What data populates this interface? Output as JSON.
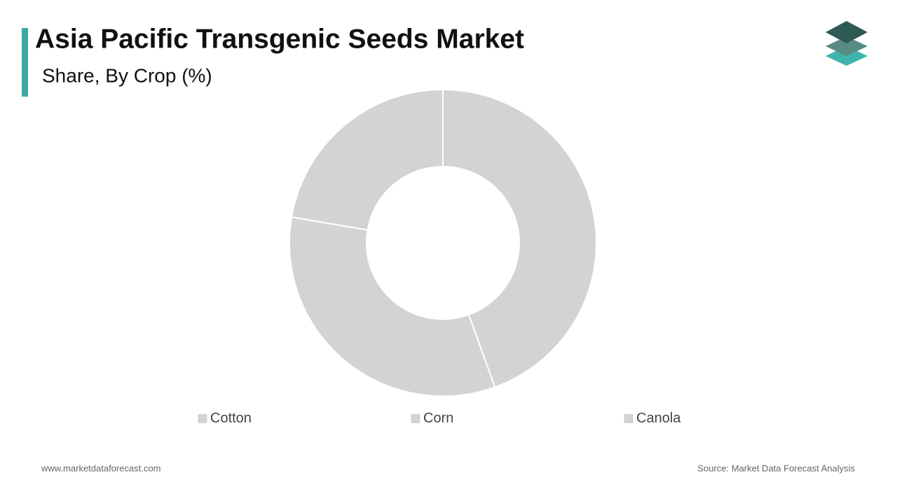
{
  "chart_data": {
    "type": "donut",
    "title": "Asia Pacific Transgenic Seeds Market",
    "subtitle": "Share, By Crop (%)",
    "categories": [
      "Cotton",
      "Corn",
      "Canola"
    ],
    "values": [
      44.5,
      33.2,
      22.3
    ],
    "colors": [
      "#d4d3d4",
      "#d4d3d4",
      "#d4d3d4"
    ]
  },
  "footer": {
    "website": "www.marketdataforecast.com",
    "source": "Source: Market Data Forecast Analysis"
  }
}
